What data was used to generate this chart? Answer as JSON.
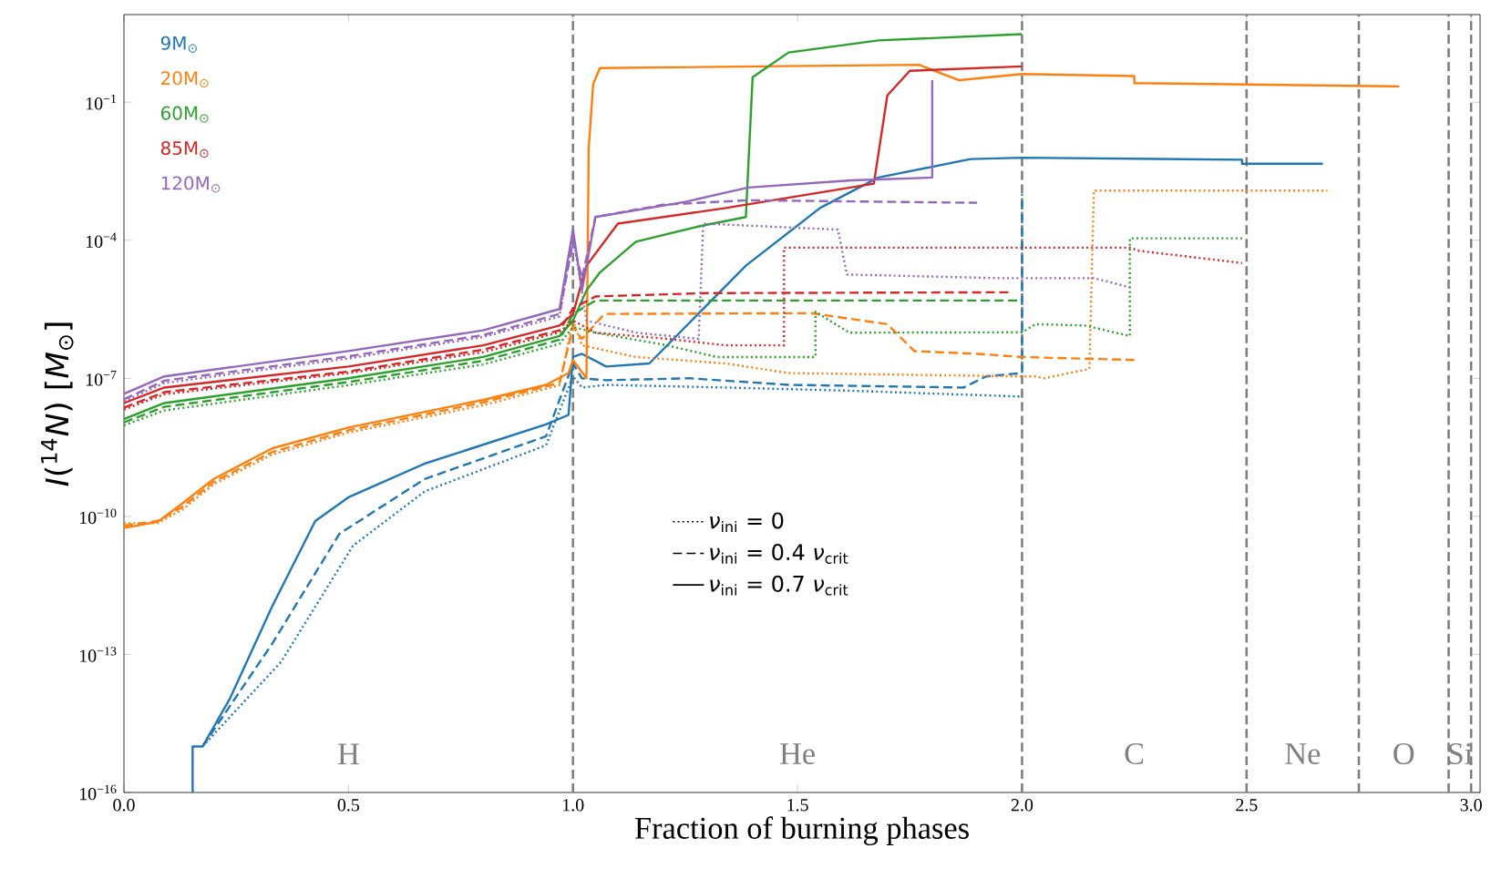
{
  "chart_data": {
    "type": "line",
    "xlabel": "Fraction of burning phases",
    "ylabel": "*I*($^{14}$*N*) [*M*$_{⊙}$]",
    "log": "y",
    "legend": "top left",
    "marker": "none",
    "xlim": [
      0,
      3.02
    ],
    "ylim": [
      1e-16,
      8
    ],
    "xticks": [
      {
        "value": 0,
        "label": "0.0"
      },
      {
        "value": 0.5,
        "label": "0.5"
      },
      {
        "value": 1,
        "label": "1.0"
      },
      {
        "value": 1.5,
        "label": "1.5"
      },
      {
        "value": 2,
        "label": "2.0"
      },
      {
        "value": 2.5,
        "label": "2.5"
      },
      {
        "value": 3,
        "label": "3.0"
      }
    ],
    "yticks": [
      {
        "value": 1e-16,
        "label": "10$^{−16}$"
      },
      {
        "value": 1e-13,
        "label": "10$^{−13}$"
      },
      {
        "value": 1e-10,
        "label": "10$^{−10}$"
      },
      {
        "value": 1e-07,
        "label": "10$^{−7}$"
      },
      {
        "value": 0.0001,
        "label": "10$^{−4}$"
      },
      {
        "value": 0.1,
        "label": "10$^{−1}$"
      }
    ],
    "ref_lines": [
      {
        "axis": "x",
        "value": 1,
        "color": "#7f7f7f",
        "line_style": "dashed"
      },
      {
        "axis": "x",
        "value": 2,
        "color": "#7f7f7f",
        "line_style": "dashed"
      },
      {
        "axis": "x",
        "value": 2.5,
        "color": "#7f7f7f",
        "line_style": "dashed"
      },
      {
        "axis": "x",
        "value": 2.75,
        "color": "#7f7f7f",
        "line_style": "dashed"
      },
      {
        "axis": "x",
        "value": 2.95,
        "color": "#7f7f7f",
        "line_style": "dashed"
      },
      {
        "axis": "x",
        "value": 3.0,
        "color": "#7f7f7f",
        "line_style": "dashed"
      }
    ],
    "annotations": [
      "*ν*$_{ini}$ = 0",
      "*ν*$_{ini}$ = 0.4 *ν*$_{crit}$",
      "*ν*$_{ini}$ = 0.7 *ν*$_{crit}$",
      "H",
      "He",
      "C",
      "Ne",
      "O",
      "Si"
    ],
    "series": [
      {
        "color": "#1f77b4",
        "line_style": "dotted",
        "x": [
          0.175,
          0.35,
          0.51,
          0.67,
          0.94,
          1.0,
          1.02,
          1.074,
          1.34,
          1.61,
          2.0
        ],
        "values": [
          1e-15,
          6.9e-14,
          2.3e-11,
          3.5e-10,
          3.5e-09,
          1.1e-07,
          6.3e-08,
          7.2e-08,
          6.3e-08,
          5.4e-08,
          4e-08
        ]
      },
      {
        "color": "#1f77b4",
        "line_style": "dashed",
        "x": [
          0.175,
          0.33,
          0.48,
          0.67,
          0.94,
          1.0,
          1.02,
          1.074,
          1.26,
          1.48,
          1.87,
          1.92,
          2.0,
          2.0
        ],
        "values": [
          1e-15,
          1.7e-13,
          4.2e-11,
          6.5e-10,
          5.5e-09,
          2.1e-07,
          1e-07,
          9.1e-08,
          1e-07,
          7.2e-08,
          6.3e-08,
          1.1e-07,
          1.3e-07,
          0.001
        ]
      },
      {
        "name": "9M$_{⊙}$",
        "color": "#1f77b4",
        "line_style": "solid",
        "x": [
          0.153,
          0.153,
          0.175,
          0.236,
          0.33,
          0.426,
          0.5,
          0.67,
          0.94,
          0.99,
          1.0,
          1.02,
          1.074,
          1.17,
          1.25,
          1.385,
          1.55,
          1.68,
          1.885,
          2.0,
          2.49,
          2.49,
          2.67
        ],
        "values": [
          1e-16,
          1e-15,
          1e-15,
          1.1e-14,
          1.1e-12,
          7.9e-11,
          2.6e-10,
          1.4e-09,
          1e-08,
          1.6e-08,
          2.9e-07,
          3.4e-07,
          1.8e-07,
          2.1e-07,
          1.3e-06,
          2.8e-05,
          0.0005,
          0.0023,
          0.0058,
          0.0062,
          0.0056,
          0.0046,
          0.0046
        ]
      },
      {
        "color": "#ff7f0e",
        "line_style": "dotted",
        "x": [
          0,
          0.075,
          0.13,
          0.2,
          0.33,
          0.5,
          0.8,
          0.97,
          1.0,
          1.02,
          1.14,
          1.34,
          1.48,
          2.0,
          2.03,
          2.05,
          2.15,
          2.16,
          2.68
        ],
        "values": [
          7.1e-11,
          7.1e-11,
          1.4e-10,
          5e-10,
          2.2e-09,
          6.6e-09,
          2.6e-08,
          7.1e-08,
          1.8e-06,
          5.2e-07,
          2.9e-07,
          2.1e-07,
          1.3e-07,
          1.1e-07,
          1.1e-07,
          1e-07,
          1.6e-07,
          0.0012,
          0.0012
        ]
      },
      {
        "color": "#ff7f0e",
        "line_style": "dashed",
        "x": [
          0,
          0.075,
          0.13,
          0.2,
          0.33,
          0.5,
          0.8,
          0.97,
          1.0,
          1.02,
          1.07,
          1.53,
          1.7,
          1.76,
          1.9,
          2.0,
          2.25
        ],
        "values": [
          6.3e-11,
          7.9e-11,
          1.6e-10,
          5.6e-10,
          2.5e-09,
          7.4e-09,
          3e-08,
          7.9e-08,
          1.3e-06,
          7.2e-07,
          2.5e-06,
          2.6e-06,
          1.5e-06,
          3.9e-07,
          3.4e-07,
          2.9e-07,
          2.5e-07
        ]
      },
      {
        "name": "20M$_{⊙}$",
        "color": "#ff7f0e",
        "line_style": "solid",
        "x": [
          0,
          0.075,
          0.13,
          0.2,
          0.33,
          0.5,
          0.8,
          0.94,
          0.99,
          1.0,
          1.03,
          1.035,
          1.045,
          1.06,
          1.77,
          1.86,
          2.0,
          2.25,
          2.25,
          2.84
        ],
        "values": [
          5.6e-11,
          7.6e-11,
          1.9e-10,
          6.5e-10,
          3e-09,
          8.5e-09,
          3.4e-08,
          7.2e-08,
          1.3e-07,
          2.5e-07,
          1e-07,
          0.01,
          0.25,
          0.55,
          0.65,
          0.3,
          0.41,
          0.37,
          0.26,
          0.22
        ]
      },
      {
        "color": "#2ca02c",
        "line_style": "dotted",
        "x": [
          0,
          0.09,
          0.5,
          0.8,
          0.97,
          1.0,
          1.05,
          1.21,
          1.32,
          1.54,
          1.54,
          1.615,
          2.0,
          2.03,
          2.14,
          2.24,
          2.24,
          2.49
        ],
        "values": [
          9.5e-09,
          2e-08,
          7.1e-08,
          2e-07,
          5.6e-07,
          1.3e-06,
          9.8e-07,
          5.2e-07,
          2.9e-07,
          2.9e-07,
          2.8e-06,
          9.8e-07,
          1e-06,
          1.5e-06,
          1.4e-06,
          8.3e-07,
          0.00011,
          0.00011
        ]
      },
      {
        "color": "#2ca02c",
        "line_style": "dashed",
        "x": [
          0,
          0.09,
          0.5,
          0.8,
          0.97,
          1.0,
          1.05,
          2.0
        ],
        "values": [
          1.1e-08,
          2.4e-08,
          8.3e-08,
          2.4e-07,
          6.9e-07,
          2.5e-06,
          4.9e-06,
          4.9e-06
        ]
      },
      {
        "name": "60M$_{⊙}$",
        "color": "#2ca02c",
        "line_style": "solid",
        "x": [
          0,
          0.09,
          0.5,
          0.8,
          0.97,
          1.0,
          1.03,
          1.06,
          1.14,
          1.28,
          1.385,
          1.4,
          1.48,
          1.68,
          2.0
        ],
        "values": [
          1.3e-08,
          2.9e-08,
          1e-07,
          2.9e-07,
          8.3e-07,
          1.8e-06,
          8.1e-06,
          2e-05,
          9.3e-05,
          0.0002,
          0.00032,
          0.35,
          1.2,
          2.2,
          3.0
        ]
      },
      {
        "color": "#d62728",
        "line_style": "dotted",
        "x": [
          0,
          0.09,
          0.5,
          0.8,
          0.97,
          1.0,
          1.05,
          1.21,
          1.34,
          1.47,
          1.47,
          2.24,
          2.26,
          2.49
        ],
        "values": [
          2.1e-08,
          4.5e-08,
          1.3e-07,
          3.7e-07,
          1e-06,
          1.8e-06,
          9.8e-07,
          7.2e-07,
          5.2e-07,
          5.2e-07,
          6.9e-05,
          6.9e-05,
          5.9e-05,
          3.2e-05
        ]
      },
      {
        "color": "#d62728",
        "line_style": "dashed",
        "x": [
          0,
          0.09,
          0.5,
          0.8,
          0.97,
          1.0,
          1.05,
          1.3,
          1.97
        ],
        "values": [
          2.3e-08,
          5e-08,
          1.4e-07,
          4.2e-07,
          1.1e-06,
          3.3e-06,
          6e-06,
          7.1e-06,
          7.4e-06
        ]
      },
      {
        "name": "85M$_{⊙}$",
        "color": "#d62728",
        "line_style": "solid",
        "x": [
          0,
          0.09,
          0.5,
          0.8,
          0.97,
          1.0,
          1.03,
          1.1,
          1.34,
          1.67,
          1.7,
          1.75,
          2.0
        ],
        "values": [
          2.9e-08,
          6.3e-08,
          1.8e-07,
          5.2e-07,
          1.4e-06,
          2.5e-06,
          2.8e-05,
          0.00023,
          0.0005,
          0.0017,
          0.14,
          0.48,
          0.6
        ]
      },
      {
        "color": "#9467bd",
        "line_style": "dotted",
        "x": [
          0,
          0.09,
          0.5,
          0.8,
          0.97,
          1.0,
          1.03,
          1.14,
          1.28,
          1.29,
          1.59,
          1.61,
          1.95,
          2.16,
          2.24
        ],
        "values": [
          3.2e-08,
          7.9e-08,
          2.7e-07,
          7.9e-07,
          2.2e-06,
          0.00013,
          1.8e-06,
          9.8e-07,
          7.2e-07,
          0.00023,
          0.00017,
          1.8e-05,
          1.5e-05,
          1.5e-05,
          9.5e-06
        ]
      },
      {
        "color": "#9467bd",
        "line_style": "dashed",
        "x": [
          0,
          0.09,
          0.5,
          0.8,
          0.97,
          1.0,
          1.02,
          1.05,
          1.2,
          1.39,
          1.9
        ],
        "values": [
          3.5e-08,
          8.9e-08,
          3e-07,
          8.7e-07,
          2.5e-06,
          9.3e-05,
          1.5e-05,
          0.00032,
          0.00059,
          0.00074,
          0.00065
        ]
      },
      {
        "name": "120M$_{⊙}$",
        "color": "#9467bd",
        "line_style": "solid",
        "x": [
          0,
          0.09,
          0.5,
          0.8,
          0.97,
          1.0,
          1.02,
          1.05,
          1.25,
          1.39,
          1.62,
          1.8,
          1.8
        ],
        "values": [
          4.6e-08,
          1.1e-07,
          3.9e-07,
          1.1e-06,
          3.2e-06,
          0.00017,
          8.1e-06,
          0.00032,
          0.00068,
          0.0014,
          0.002,
          0.0023,
          0.3
        ]
      }
    ]
  }
}
